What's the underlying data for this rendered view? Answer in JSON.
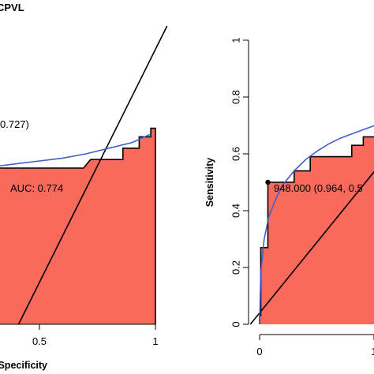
{
  "chart_data": [
    {
      "type": "area",
      "title": "CPVL",
      "xlabel": "Specificity",
      "ylabel": "",
      "x_axis_reversed": true,
      "xlim": [
        1,
        0
      ],
      "ylim": [
        0,
        1
      ],
      "x_tick_labels": [
        "0.5",
        "1"
      ],
      "x_ticks": [
        0.5,
        1
      ],
      "grid": false,
      "auc_label": "AUC: 0.774",
      "threshold_label": "0.727)",
      "empirical_roc": {
        "specificity": [
          1.0,
          1.0,
          0.98,
          0.98,
          0.93,
          0.93,
          0.86,
          0.86,
          0.72,
          0.69,
          0.5,
          0.3,
          0.3
        ],
        "sensitivity": [
          0.0,
          0.69,
          0.69,
          0.66,
          0.66,
          0.62,
          0.62,
          0.58,
          0.58,
          0.55,
          0.55,
          0.55,
          0.0
        ]
      },
      "smoothed_roc": {
        "specificity": [
          0.98,
          0.9,
          0.8,
          0.7,
          0.6,
          0.5,
          0.4,
          0.3
        ],
        "sensitivity": [
          0.67,
          0.64,
          0.62,
          0.6,
          0.585,
          0.575,
          0.565,
          0.555
        ]
      },
      "diagonal": true
    },
    {
      "type": "area",
      "title": "",
      "xlabel": "",
      "ylabel": "Sensitivity",
      "x_axis_reversed": true,
      "xlim": [
        1,
        0
      ],
      "ylim": [
        0,
        1
      ],
      "x_tick_labels": [
        "0",
        "1"
      ],
      "x_ticks": [
        0.0,
        1.0
      ],
      "y_ticks": [
        0,
        0.2,
        0.4,
        0.6,
        0.8,
        1
      ],
      "y_tick_labels": [
        "0",
        "0.2",
        "0.4",
        "0.6",
        "0.8",
        "1"
      ],
      "grid": false,
      "threshold_label": "948.000 (0.964, 0.5",
      "threshold_point": {
        "specificity": 0.964,
        "sensitivity": 0.5
      },
      "empirical_roc": {
        "specificity": [
          1.0,
          1.0,
          0.995,
          0.995,
          0.964,
          0.964,
          0.85,
          0.85,
          0.78,
          0.78,
          0.6,
          0.6,
          0.55,
          0.55,
          0.5,
          0.5
        ],
        "sensitivity": [
          0.0,
          0.03,
          0.03,
          0.27,
          0.27,
          0.5,
          0.5,
          0.54,
          0.54,
          0.59,
          0.59,
          0.63,
          0.63,
          0.66,
          0.66,
          0.0
        ]
      },
      "smoothed_roc": {
        "specificity": [
          1.0,
          0.995,
          0.98,
          0.96,
          0.93,
          0.9,
          0.85,
          0.8,
          0.75,
          0.7,
          0.65,
          0.6,
          0.55,
          0.5
        ],
        "sensitivity": [
          0.0,
          0.18,
          0.3,
          0.38,
          0.44,
          0.49,
          0.54,
          0.58,
          0.61,
          0.635,
          0.655,
          0.67,
          0.685,
          0.7
        ]
      },
      "diagonal": true
    }
  ],
  "colors": {
    "fill": "#fa6a5c",
    "step_line": "#000000",
    "smooth_line": "#3f5fc8",
    "diagonal": "#000000"
  }
}
